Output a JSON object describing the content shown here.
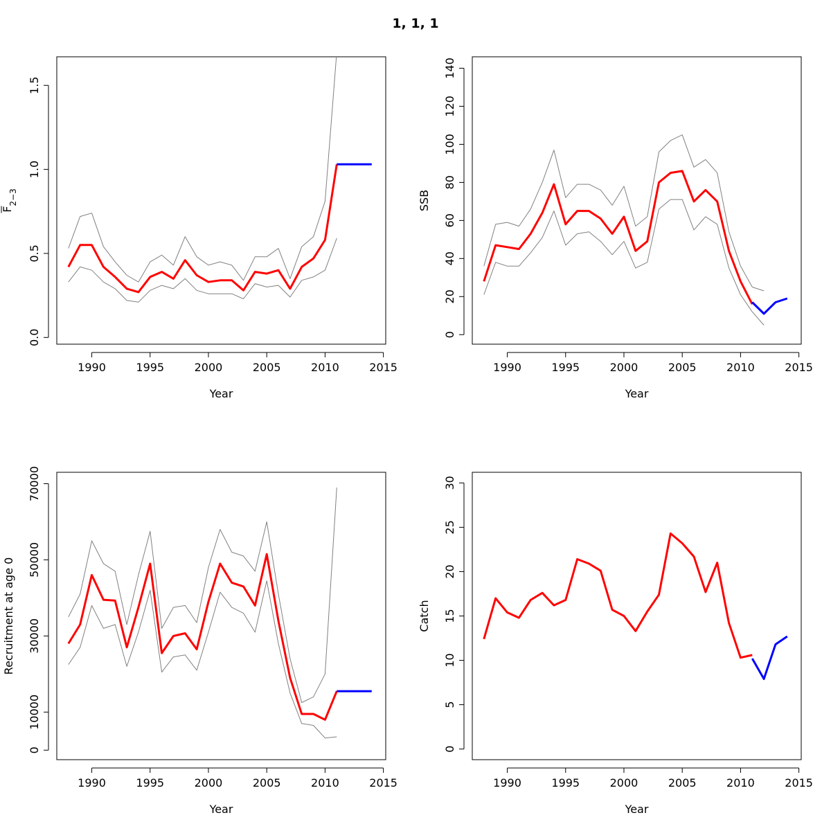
{
  "title": "1, 1, 1",
  "chart_data": [
    {
      "type": "line",
      "xlabel": "Year",
      "ylabel": "F",
      "ylabel_sub": "2−3",
      "xlim": [
        1987,
        2015.2
      ],
      "ylim": [
        -0.04,
        1.67
      ],
      "xticks": [
        1990,
        1995,
        2000,
        2005,
        2010,
        2015
      ],
      "yticks": [
        0.0,
        0.5,
        1.0,
        1.5
      ],
      "ytick_labels": [
        "0.0",
        "0.5",
        "1.0",
        "1.5"
      ],
      "series": [
        {
          "role": "upper",
          "color": "#808080",
          "width": 1,
          "x": [
            1988,
            1989,
            1990,
            1991,
            1992,
            1993,
            1994,
            1995,
            1996,
            1997,
            1998,
            1999,
            2000,
            2001,
            2002,
            2003,
            2004,
            2005,
            2006,
            2007,
            2008,
            2009,
            2010,
            2011
          ],
          "y": [
            0.53,
            0.72,
            0.74,
            0.54,
            0.45,
            0.37,
            0.33,
            0.45,
            0.49,
            0.43,
            0.6,
            0.48,
            0.43,
            0.45,
            0.43,
            0.34,
            0.48,
            0.48,
            0.53,
            0.35,
            0.54,
            0.6,
            0.81,
            1.7
          ]
        },
        {
          "role": "estimate",
          "color": "#ff0000",
          "width": 3,
          "x": [
            1988,
            1989,
            1990,
            1991,
            1992,
            1993,
            1994,
            1995,
            1996,
            1997,
            1998,
            1999,
            2000,
            2001,
            2002,
            2003,
            2004,
            2005,
            2006,
            2007,
            2008,
            2009,
            2010,
            2011
          ],
          "y": [
            0.42,
            0.55,
            0.55,
            0.42,
            0.36,
            0.29,
            0.27,
            0.36,
            0.39,
            0.35,
            0.46,
            0.37,
            0.33,
            0.34,
            0.34,
            0.28,
            0.39,
            0.38,
            0.4,
            0.29,
            0.42,
            0.47,
            0.58,
            1.03
          ]
        },
        {
          "role": "lower",
          "color": "#808080",
          "width": 1,
          "x": [
            1988,
            1989,
            1990,
            1991,
            1992,
            1993,
            1994,
            1995,
            1996,
            1997,
            1998,
            1999,
            2000,
            2001,
            2002,
            2003,
            2004,
            2005,
            2006,
            2007,
            2008,
            2009,
            2010,
            2011
          ],
          "y": [
            0.33,
            0.42,
            0.4,
            0.33,
            0.29,
            0.22,
            0.21,
            0.28,
            0.31,
            0.29,
            0.35,
            0.28,
            0.26,
            0.26,
            0.26,
            0.23,
            0.32,
            0.3,
            0.31,
            0.24,
            0.34,
            0.36,
            0.4,
            0.59
          ]
        },
        {
          "role": "forecast",
          "color": "#0000ff",
          "width": 3,
          "x": [
            2011,
            2012,
            2013,
            2014
          ],
          "y": [
            1.03,
            1.03,
            1.03,
            1.03
          ]
        }
      ]
    },
    {
      "type": "line",
      "xlabel": "Year",
      "ylabel": "SSB",
      "xlim": [
        1987,
        2015.2
      ],
      "ylim": [
        -5,
        146
      ],
      "xticks": [
        1990,
        1995,
        2000,
        2005,
        2010,
        2015
      ],
      "yticks": [
        0,
        20,
        40,
        60,
        80,
        100,
        120,
        140
      ],
      "ytick_labels": [
        "0",
        "20",
        "40",
        "60",
        "80",
        "100",
        "120",
        "140"
      ],
      "series": [
        {
          "role": "upper",
          "color": "#808080",
          "width": 1,
          "x": [
            1988,
            1989,
            1990,
            1991,
            1992,
            1993,
            1994,
            1995,
            1996,
            1997,
            1998,
            1999,
            2000,
            2001,
            2002,
            2003,
            2004,
            2005,
            2006,
            2007,
            2008,
            2009,
            2010,
            2011,
            2012
          ],
          "y": [
            36,
            58,
            59,
            57,
            66,
            80,
            97,
            72,
            79,
            79,
            76,
            68,
            78,
            57,
            62,
            96,
            102,
            105,
            88,
            92,
            85,
            54,
            36,
            25,
            23
          ]
        },
        {
          "role": "estimate",
          "color": "#ff0000",
          "width": 3,
          "x": [
            1988,
            1989,
            1990,
            1991,
            1992,
            1993,
            1994,
            1995,
            1996,
            1997,
            1998,
            1999,
            2000,
            2001,
            2002,
            2003,
            2004,
            2005,
            2006,
            2007,
            2008,
            2009,
            2010,
            2011
          ],
          "y": [
            28,
            47,
            46,
            45,
            53,
            64,
            79,
            58,
            65,
            65,
            61,
            53,
            62,
            44,
            49,
            80,
            85,
            86,
            70,
            76,
            70,
            44,
            28,
            16
          ]
        },
        {
          "role": "lower",
          "color": "#808080",
          "width": 1,
          "x": [
            1988,
            1989,
            1990,
            1991,
            1992,
            1993,
            1994,
            1995,
            1996,
            1997,
            1998,
            1999,
            2000,
            2001,
            2002,
            2003,
            2004,
            2005,
            2006,
            2007,
            2008,
            2009,
            2010,
            2011,
            2012
          ],
          "y": [
            21,
            38,
            36,
            36,
            43,
            51,
            65,
            47,
            53,
            54,
            49,
            42,
            49,
            35,
            38,
            66,
            71,
            71,
            55,
            62,
            58,
            35,
            21,
            12,
            5
          ]
        },
        {
          "role": "forecast",
          "color": "#0000ff",
          "width": 3,
          "x": [
            2011,
            2012,
            2013,
            2014
          ],
          "y": [
            17,
            11,
            17,
            19
          ]
        }
      ]
    },
    {
      "type": "line",
      "xlabel": "Year",
      "ylabel": "Recruitment at age 0",
      "xlim": [
        1987,
        2015.2
      ],
      "ylim": [
        -2500,
        73000
      ],
      "xticks": [
        1990,
        1995,
        2000,
        2005,
        2010,
        2015
      ],
      "yticks": [
        0,
        10000,
        30000,
        50000,
        70000
      ],
      "ytick_labels": [
        "0",
        "10000",
        "30000",
        "50000",
        "70000"
      ],
      "series": [
        {
          "role": "upper",
          "color": "#808080",
          "width": 1,
          "x": [
            1988,
            1989,
            1990,
            1991,
            1992,
            1993,
            1994,
            1995,
            1996,
            1997,
            1998,
            1999,
            2000,
            2001,
            2002,
            2003,
            2004,
            2005,
            2006,
            2007,
            2008,
            2009,
            2010,
            2011
          ],
          "y": [
            35000,
            41000,
            55000,
            49000,
            47000,
            33000,
            46000,
            57500,
            32000,
            37500,
            38000,
            33500,
            48000,
            58000,
            52000,
            51000,
            47000,
            60000,
            41000,
            24000,
            12500,
            14000,
            20000,
            69000
          ]
        },
        {
          "role": "estimate",
          "color": "#ff0000",
          "width": 3,
          "x": [
            1988,
            1989,
            1990,
            1991,
            1992,
            1993,
            1994,
            1995,
            1996,
            1997,
            1998,
            1999,
            2000,
            2001,
            2002,
            2003,
            2004,
            2005,
            2006,
            2007,
            2008,
            2009,
            2010,
            2011
          ],
          "y": [
            28000,
            33000,
            46000,
            39500,
            39300,
            27000,
            37500,
            49000,
            25500,
            30000,
            30700,
            26500,
            39000,
            49000,
            44000,
            43000,
            38000,
            51500,
            34000,
            19000,
            9500,
            9500,
            8000,
            15500
          ]
        },
        {
          "role": "lower",
          "color": "#808080",
          "width": 1,
          "x": [
            1988,
            1989,
            1990,
            1991,
            1992,
            1993,
            1994,
            1995,
            1996,
            1997,
            1998,
            1999,
            2000,
            2001,
            2002,
            2003,
            2004,
            2005,
            2006,
            2007,
            2008,
            2009,
            2010,
            2011
          ],
          "y": [
            22500,
            27000,
            38000,
            32000,
            33000,
            22000,
            31000,
            42000,
            20500,
            24500,
            25000,
            21000,
            31000,
            41500,
            37500,
            36000,
            31000,
            44500,
            28000,
            15000,
            7000,
            6500,
            3200,
            3500
          ]
        },
        {
          "role": "forecast",
          "color": "#0000ff",
          "width": 3,
          "x": [
            2011,
            2012,
            2013,
            2014
          ],
          "y": [
            15500,
            15500,
            15500,
            15500
          ]
        }
      ]
    },
    {
      "type": "line",
      "xlabel": "Year",
      "ylabel": "Catch",
      "xlim": [
        1987,
        2015.2
      ],
      "ylim": [
        -1.2,
        31.2
      ],
      "xticks": [
        1990,
        1995,
        2000,
        2005,
        2010,
        2015
      ],
      "yticks": [
        0,
        5,
        10,
        15,
        20,
        25,
        30
      ],
      "ytick_labels": [
        "0",
        "5",
        "10",
        "15",
        "20",
        "25",
        "30"
      ],
      "series": [
        {
          "role": "estimate",
          "color": "#ff0000",
          "width": 3,
          "x": [
            1988,
            1989,
            1990,
            1991,
            1992,
            1993,
            1994,
            1995,
            1996,
            1997,
            1998,
            1999,
            2000,
            2001,
            2002,
            2003,
            2004,
            2005,
            2006,
            2007,
            2008,
            2009,
            2010,
            2011
          ],
          "y": [
            12.4,
            17.0,
            15.4,
            14.8,
            16.8,
            17.6,
            16.2,
            16.8,
            21.4,
            20.9,
            20.1,
            15.7,
            15.0,
            13.3,
            15.5,
            17.4,
            24.3,
            23.2,
            21.7,
            17.7,
            21.0,
            14.2,
            10.3,
            10.6
          ]
        },
        {
          "role": "forecast",
          "color": "#0000ff",
          "width": 3,
          "x": [
            2011,
            2012,
            2013,
            2014
          ],
          "y": [
            10.2,
            7.9,
            11.8,
            12.7
          ]
        }
      ]
    }
  ]
}
